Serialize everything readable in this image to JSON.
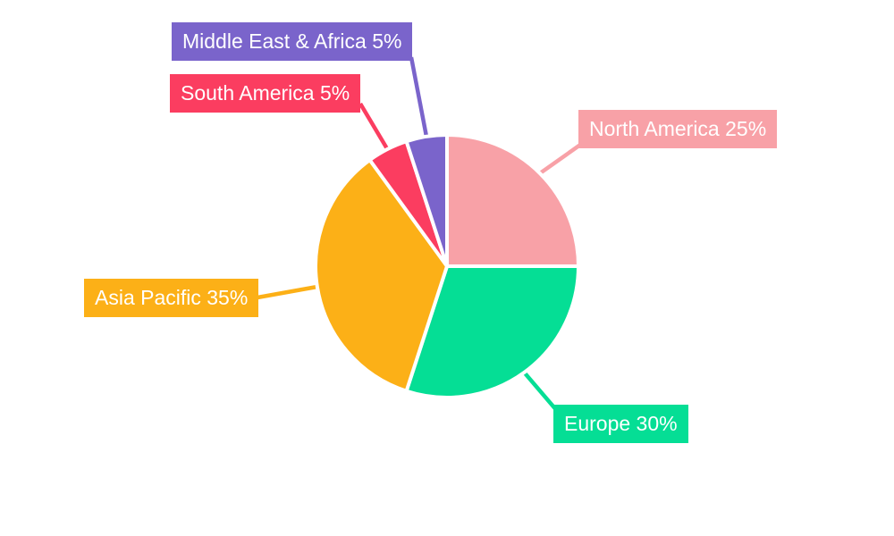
{
  "chart_data": {
    "type": "pie",
    "unit": "%",
    "categories": [
      "North America",
      "Europe",
      "Asia Pacific",
      "South America",
      "Middle East & Africa"
    ],
    "values": [
      25,
      30,
      35,
      5,
      5
    ],
    "colors": [
      "#F8A1A7",
      "#05DE95",
      "#FCB017",
      "#FB3D60",
      "#7A64CB"
    ],
    "callouts": [
      "North America 25%",
      "Europe 30%",
      "Asia Pacific 35%",
      "South America 5%",
      "Middle East & Africa 5%"
    ],
    "start_angle_deg": 0,
    "direction": "clockwise",
    "slice_border_color": "#FFFFFF",
    "background": "#FFFFFF",
    "legend_position": "callout-labels"
  }
}
